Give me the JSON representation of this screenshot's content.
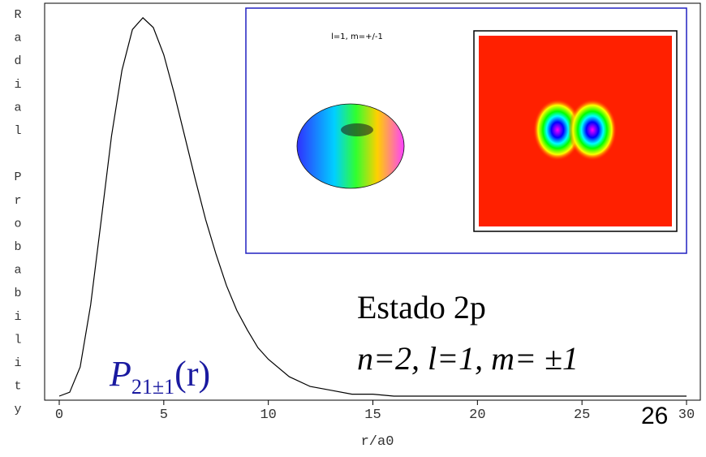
{
  "chart_data": {
    "type": "line",
    "y_label": "Radial Probability",
    "x_label": "r/a0",
    "x": [
      0,
      0.5,
      1,
      1.5,
      2,
      2.5,
      3,
      3.5,
      4,
      4.5,
      5,
      5.5,
      6,
      6.5,
      7,
      7.5,
      8,
      8.5,
      9,
      9.5,
      10,
      11,
      12,
      13,
      14,
      15,
      16,
      18,
      20,
      25,
      30
    ],
    "series": [
      {
        "color": "#000000",
        "values": [
          0,
          0.002,
          0.015,
          0.047,
          0.09,
          0.134,
          0.168,
          0.189,
          0.195,
          0.19,
          0.176,
          0.156,
          0.134,
          0.112,
          0.091,
          0.073,
          0.057,
          0.044,
          0.034,
          0.025,
          0.019,
          0.01,
          0.005,
          0.003,
          0.001,
          0.001,
          0,
          0,
          0,
          0,
          0
        ]
      }
    ],
    "xlim": [
      0,
      30
    ],
    "xticks": [
      0,
      5,
      10,
      15,
      20,
      25,
      30
    ],
    "ylim": [
      0,
      0.2
    ],
    "inset_label": "l=1, m=+/-1",
    "formula": {
      "symbol": "P",
      "subscript": "21±1",
      "argument": "(r)"
    },
    "annotations": [
      "Estado 2p",
      "n=2, l=1, m= ±1"
    ],
    "slide_number": "26"
  }
}
